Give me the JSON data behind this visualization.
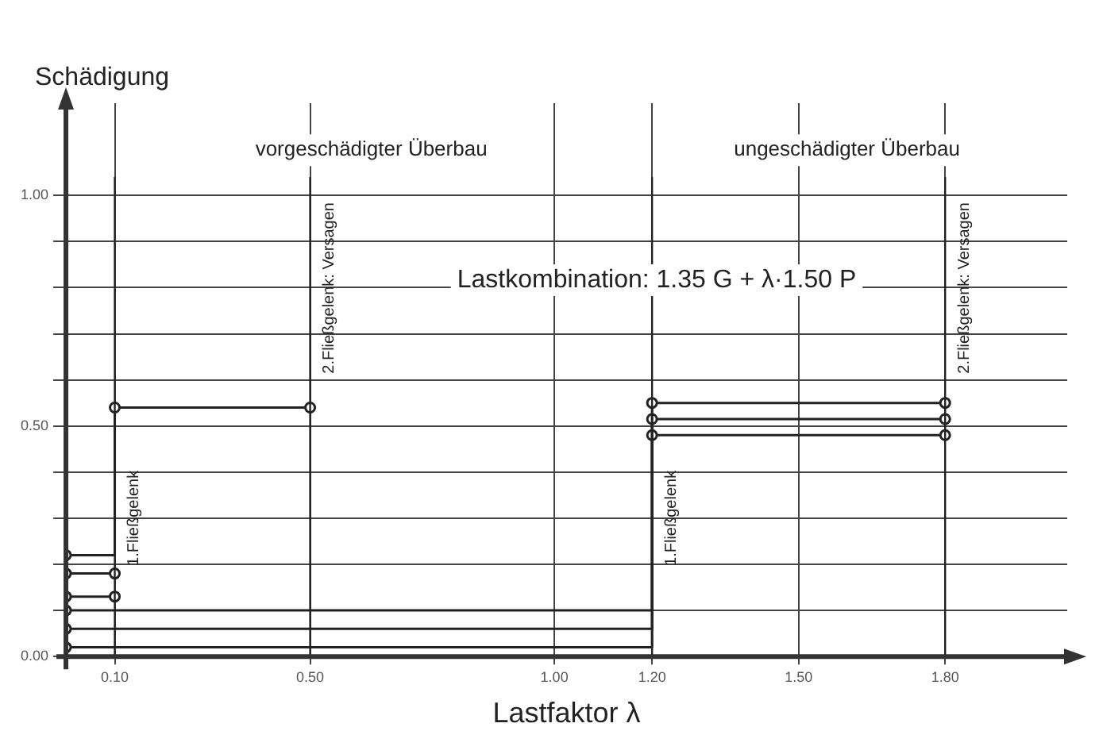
{
  "chart_data": {
    "type": "step",
    "ylabel": "Schädigung",
    "xlabel": "Lastfaktor λ",
    "xlim": [
      0,
      2.05
    ],
    "ylim": [
      0,
      1.2
    ],
    "xticks": [
      {
        "value": 0.1,
        "label": "0.10"
      },
      {
        "value": 0.5,
        "label": "0.50"
      },
      {
        "value": 1.0,
        "label": "1.00"
      },
      {
        "value": 1.2,
        "label": "1.20"
      },
      {
        "value": 1.5,
        "label": "1.50"
      },
      {
        "value": 1.8,
        "label": "1.80"
      }
    ],
    "yticks": [
      {
        "value": 0,
        "label": "0.00"
      },
      {
        "value": 0.1,
        "label": null
      },
      {
        "value": 0.2,
        "label": null
      },
      {
        "value": 0.3,
        "label": null
      },
      {
        "value": 0.4,
        "label": null
      },
      {
        "value": 0.5,
        "label": "0.50"
      },
      {
        "value": 0.6,
        "label": null
      },
      {
        "value": 0.7,
        "label": null
      },
      {
        "value": 0.8,
        "label": null
      },
      {
        "value": 0.9,
        "label": null
      },
      {
        "value": 1.0,
        "label": "1.00"
      }
    ],
    "grid": true,
    "legend": false,
    "marker": "circle",
    "line_style": "solid",
    "series": [
      {
        "color": "#222222",
        "x": [
          0,
          0.1,
          0.5
        ],
        "values": [
          0.22,
          0.54,
          0.54
        ]
      },
      {
        "color": "#222222",
        "x": [
          0,
          0.1
        ],
        "values": [
          0.18,
          0.18
        ]
      },
      {
        "color": "#222222",
        "x": [
          0,
          0.1
        ],
        "values": [
          0.13,
          0.13
        ]
      },
      {
        "color": "#222222",
        "x": [
          0,
          1.2,
          1.8
        ],
        "values": [
          0.1,
          0.55,
          0.55
        ]
      },
      {
        "color": "#222222",
        "x": [
          0,
          1.2,
          1.8
        ],
        "values": [
          0.06,
          0.515,
          0.515
        ]
      },
      {
        "color": "#222222",
        "x": [
          0,
          1.2,
          1.8
        ],
        "values": [
          0.02,
          0.48,
          0.48
        ]
      }
    ],
    "ref_lines": [
      {
        "axis": "x",
        "value": 0.1,
        "label": "1.Fließgelenk"
      },
      {
        "axis": "x",
        "value": 0.5,
        "label": "2.Fließgelenk: Versagen"
      },
      {
        "axis": "x",
        "value": 1.2,
        "label": "1.Fließgelenk"
      },
      {
        "axis": "x",
        "value": 1.8,
        "label": "2.Fließgelenk: Versagen"
      }
    ],
    "annotations": [
      "vorgeschädigter Überbau",
      "ungeschädigter Überbau",
      "Lastkombination: 1.35 G + λ·1.50 P"
    ]
  }
}
